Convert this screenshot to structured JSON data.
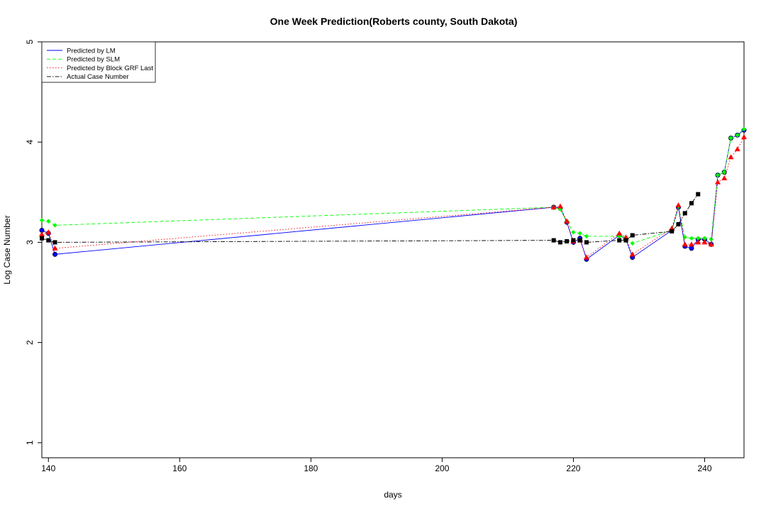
{
  "chart_data": {
    "type": "line",
    "title": "One Week Prediction(Roberts county, South Dakota)",
    "xlabel": "days",
    "ylabel": "Log Case Number",
    "xlim": [
      139,
      246
    ],
    "ylim": [
      0.85,
      5.0
    ],
    "xticks": [
      140,
      160,
      180,
      200,
      220,
      240
    ],
    "yticks": [
      1,
      2,
      3,
      4,
      5
    ],
    "grid": false,
    "legend_position": "top-left",
    "series": [
      {
        "name": "Predicted by LM",
        "color": "#0000ff",
        "line": "solid",
        "marker": "circle",
        "points": [
          [
            139,
            3.12
          ],
          [
            140,
            3.09
          ],
          [
            141,
            2.88
          ],
          [
            217,
            3.35
          ],
          [
            218,
            3.34
          ],
          [
            219,
            3.2
          ],
          [
            220,
            3.0
          ],
          [
            221,
            3.04
          ],
          [
            222,
            2.83
          ],
          [
            227,
            3.07
          ],
          [
            228,
            3.03
          ],
          [
            229,
            2.85
          ],
          [
            235,
            3.12
          ],
          [
            236,
            3.35
          ],
          [
            237,
            2.96
          ],
          [
            238,
            2.94
          ],
          [
            239,
            3.03
          ],
          [
            240,
            3.03
          ],
          [
            241,
            2.98
          ],
          [
            242,
            3.67
          ],
          [
            243,
            3.7
          ],
          [
            244,
            4.04
          ],
          [
            245,
            4.07
          ],
          [
            246,
            4.12
          ]
        ]
      },
      {
        "name": "Predicted by SLM",
        "color": "#00ff00",
        "line": "dashed",
        "marker": "diamond",
        "points": [
          [
            139,
            3.22
          ],
          [
            140,
            3.21
          ],
          [
            141,
            3.17
          ],
          [
            217,
            3.35
          ],
          [
            218,
            3.33
          ],
          [
            219,
            3.21
          ],
          [
            220,
            3.1
          ],
          [
            221,
            3.09
          ],
          [
            222,
            3.06
          ],
          [
            227,
            3.06
          ],
          [
            228,
            3.05
          ],
          [
            229,
            2.99
          ],
          [
            235,
            3.12
          ],
          [
            236,
            3.36
          ],
          [
            237,
            3.05
          ],
          [
            238,
            3.04
          ],
          [
            239,
            3.04
          ],
          [
            240,
            3.04
          ],
          [
            241,
            3.03
          ],
          [
            242,
            3.67
          ],
          [
            243,
            3.7
          ],
          [
            244,
            4.04
          ],
          [
            245,
            4.07
          ],
          [
            246,
            4.13
          ]
        ]
      },
      {
        "name": "Predicted by Block GRF Last",
        "color": "#ff0000",
        "line": "dotted",
        "marker": "triangle",
        "points": [
          [
            139,
            3.08
          ],
          [
            140,
            3.1
          ],
          [
            141,
            2.94
          ],
          [
            217,
            3.35
          ],
          [
            218,
            3.36
          ],
          [
            219,
            3.21
          ],
          [
            220,
            3.01
          ],
          [
            221,
            3.02
          ],
          [
            222,
            2.85
          ],
          [
            227,
            3.09
          ],
          [
            228,
            3.05
          ],
          [
            229,
            2.88
          ],
          [
            235,
            3.14
          ],
          [
            236,
            3.37
          ],
          [
            237,
            2.98
          ],
          [
            238,
            2.98
          ],
          [
            239,
            3.0
          ],
          [
            240,
            3.0
          ],
          [
            241,
            2.98
          ],
          [
            242,
            3.6
          ],
          [
            243,
            3.64
          ],
          [
            244,
            3.85
          ],
          [
            245,
            3.93
          ],
          [
            246,
            4.05
          ]
        ]
      },
      {
        "name": "Actual Case Number",
        "color": "#000000",
        "line": "dotdash",
        "marker": "square",
        "points": [
          [
            139,
            3.04
          ],
          [
            140,
            3.02
          ],
          [
            141,
            3.0
          ],
          [
            217,
            3.02
          ],
          [
            218,
            3.0
          ],
          [
            219,
            3.01
          ],
          [
            220,
            3.02
          ],
          [
            221,
            3.02
          ],
          [
            222,
            3.0
          ],
          [
            227,
            3.02
          ],
          [
            228,
            3.02
          ],
          [
            229,
            3.07
          ],
          [
            235,
            3.11
          ],
          [
            236,
            3.18
          ],
          [
            237,
            3.29
          ],
          [
            238,
            3.39
          ],
          [
            239,
            3.48
          ]
        ]
      }
    ]
  }
}
